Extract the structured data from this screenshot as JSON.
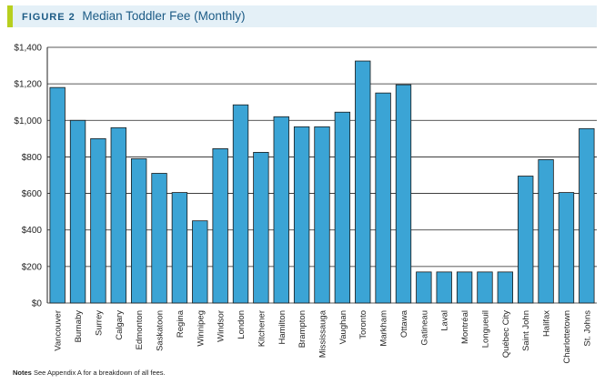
{
  "figure_label": "FIGURE 2",
  "notes": {
    "label": "Notes",
    "text": "See Appendix A for a breakdown of all fees."
  },
  "colors": {
    "bar": "#3ba4d5",
    "bar_stroke": "#1a1a1a",
    "grid": "#222222",
    "title_bg": "#e4f0f7",
    "title_accent": "#b7cf1f",
    "title_text": "#1c5b86"
  },
  "chart_data": {
    "type": "bar",
    "title": "Median Toddler Fee (Monthly)",
    "xlabel": "",
    "ylabel": "",
    "ylim": [
      0,
      1400
    ],
    "yticks": [
      0,
      200,
      400,
      600,
      800,
      1000,
      1200,
      1400
    ],
    "ytick_labels": [
      "$0",
      "$200",
      "$400",
      "$600",
      "$800",
      "$1,000",
      "$1,200",
      "$1,400"
    ],
    "grid": true,
    "categories": [
      "Vancouver",
      "Burnaby",
      "Surrey",
      "Calgary",
      "Edmonton",
      "Saskatoon",
      "Regina",
      "Winnipeg",
      "Windsor",
      "London",
      "Kitchener",
      "Hamilton",
      "Brampton",
      "Mississauga",
      "Vaughan",
      "Toronto",
      "Markham",
      "Ottawa",
      "Gatineau",
      "Laval",
      "Montréal",
      "Longueuil",
      "Québec City",
      "Saint John",
      "Halifax",
      "Charlottetown",
      "St. Johns"
    ],
    "values": [
      1180,
      1000,
      900,
      960,
      790,
      710,
      605,
      450,
      845,
      1085,
      825,
      1020,
      965,
      965,
      1045,
      1325,
      1150,
      1195,
      170,
      170,
      170,
      170,
      170,
      695,
      785,
      605,
      955
    ]
  }
}
